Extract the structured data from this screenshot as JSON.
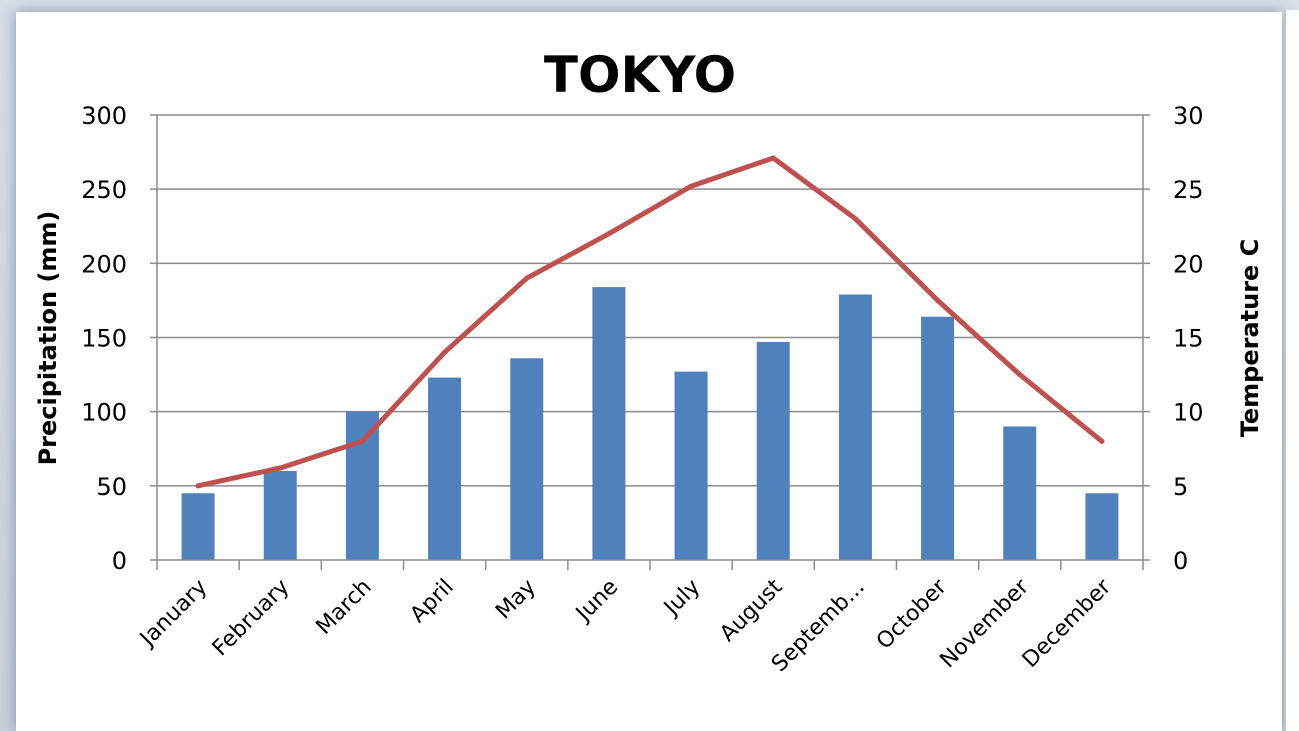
{
  "chart_data": {
    "type": "bar+line",
    "title": "TOKYO",
    "categories": [
      "January",
      "February",
      "March",
      "April",
      "May",
      "June",
      "July",
      "August",
      "Septemb...",
      "October",
      "November",
      "December"
    ],
    "series": [
      {
        "type": "bar",
        "axis": "left",
        "values": [
          45,
          60,
          100,
          123,
          136,
          184,
          127,
          147,
          179,
          164,
          90,
          45
        ]
      },
      {
        "type": "line",
        "axis": "right",
        "values": [
          5,
          6.2,
          8,
          14,
          19,
          22,
          25.2,
          27.1,
          23,
          17.5,
          12.5,
          8
        ]
      }
    ],
    "ylabel_left": "Precipitation (mm)",
    "ylabel_right": "Temperature C",
    "ylim_left": [
      0,
      300
    ],
    "ylim_right": [
      0,
      30
    ],
    "yticks_left": [
      "0",
      "50",
      "100",
      "150",
      "200",
      "250",
      "300"
    ],
    "yticks_right": [
      "0",
      "5",
      "10",
      "15",
      "20",
      "25",
      "30"
    ],
    "grid": true,
    "colors": {
      "bar": "#4f81bd",
      "line": "#c0504d",
      "grid": "#8c8c8c"
    }
  }
}
